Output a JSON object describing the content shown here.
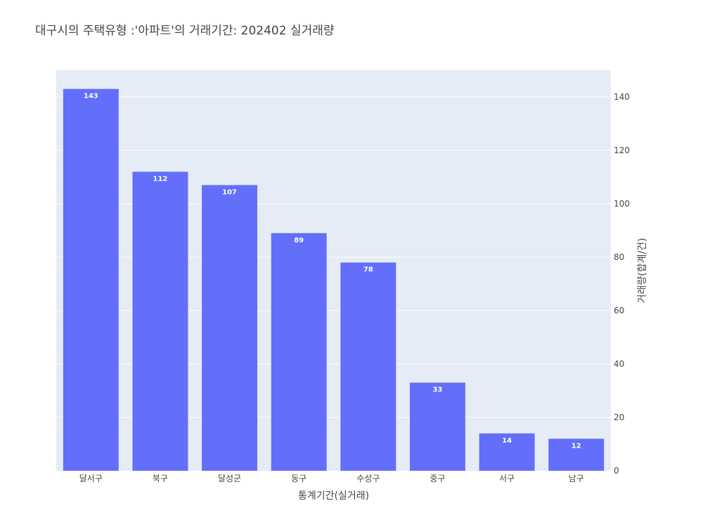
{
  "chart_data": {
    "type": "bar",
    "title": "대구시의 주택유형 :'아파트'의 거래기간: 202402 실거래량",
    "xlabel": "통계기간(실거래)",
    "ylabel": "거래량(합계/건)",
    "categories": [
      "달서구",
      "북구",
      "달성군",
      "동구",
      "수성구",
      "중구",
      "서구",
      "남구"
    ],
    "values": [
      143,
      112,
      107,
      89,
      78,
      33,
      14,
      12
    ],
    "ylim": [
      0,
      150
    ],
    "yticks": [
      0,
      20,
      40,
      60,
      80,
      100,
      120,
      140
    ],
    "y_axis_side": "right",
    "grid": true,
    "colors": {
      "bar": "#636efa",
      "plot_bg": "#e5ecf6",
      "grid": "#ffffff",
      "text": "#444444"
    }
  }
}
